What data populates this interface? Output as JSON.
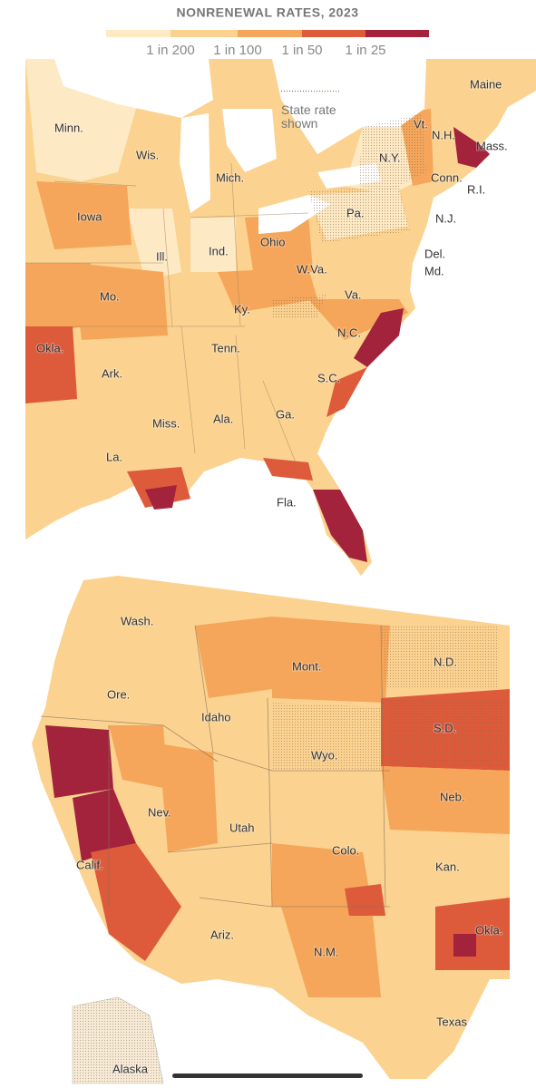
{
  "title": "NONRENEWAL RATES, 2023",
  "legend": {
    "labels": [
      "1 in 200",
      "1 in 100",
      "1 in 50",
      "1 in 25"
    ],
    "colors": [
      "#fde9c4",
      "#fbd28f",
      "#f5a65a",
      "#dd5a3a",
      "#a2233b"
    ]
  },
  "stipple_note": "State rate shown",
  "east_map": {
    "labels": [
      "Maine",
      "Vt.",
      "N.H.",
      "Mass.",
      "Minn.",
      "Wis.",
      "Mich.",
      "N.Y.",
      "Conn.",
      "R.I.",
      "Iowa",
      "Pa.",
      "N.J.",
      "Ill.",
      "Ind.",
      "Ohio",
      "Del.",
      "Md.",
      "W.Va.",
      "Mo.",
      "Ky.",
      "Va.",
      "N.C.",
      "Okla.",
      "Tenn.",
      "Ark.",
      "S.C.",
      "Ga.",
      "Ala.",
      "Miss.",
      "La.",
      "Fla."
    ]
  },
  "west_map": {
    "labels": [
      "Wash.",
      "Mont.",
      "N.D.",
      "Ore.",
      "Idaho",
      "S.D.",
      "Wyo.",
      "Nev.",
      "Neb.",
      "Utah",
      "Colo.",
      "Calif.",
      "Kan.",
      "Ariz.",
      "N.M.",
      "Okla.",
      "Texas",
      "Alaska"
    ]
  }
}
